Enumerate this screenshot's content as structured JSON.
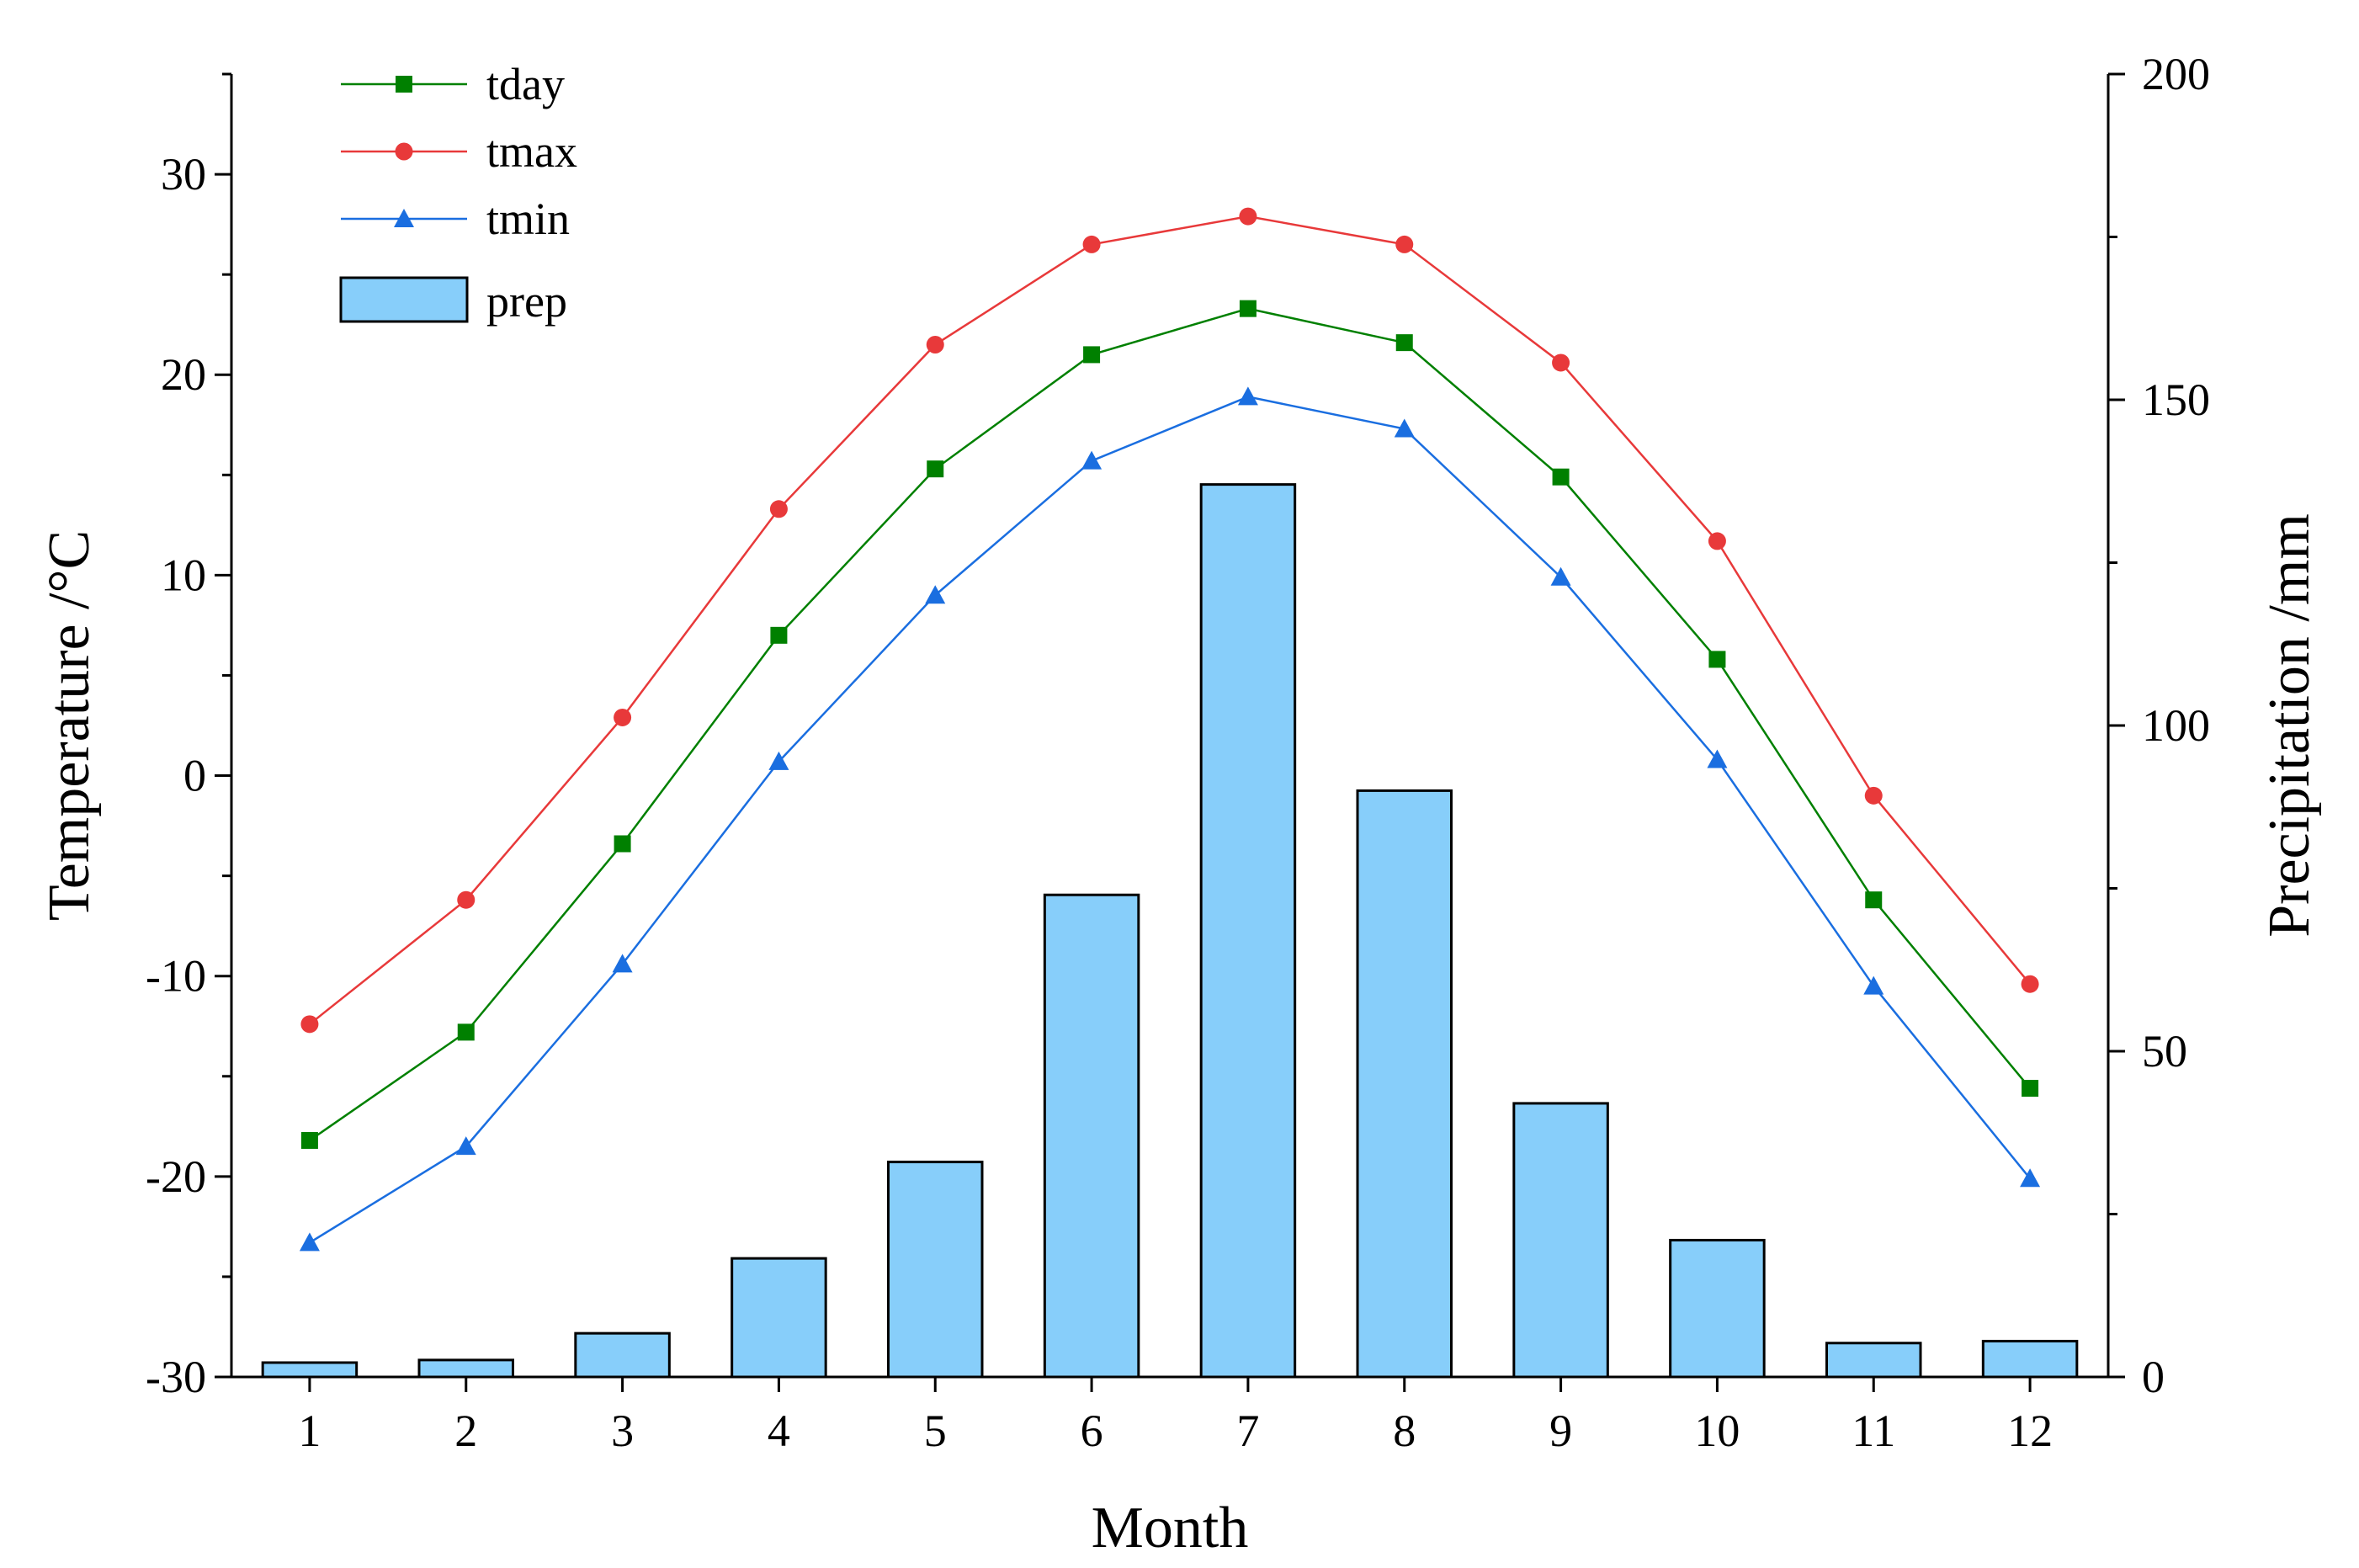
{
  "chart_data": {
    "type": "bar+line",
    "xlabel": "Month",
    "ylabel_left": "Temperature /°C",
    "ylabel_right": "Precipitation /mm",
    "categories": [
      "1",
      "2",
      "3",
      "4",
      "5",
      "6",
      "7",
      "8",
      "9",
      "10",
      "11",
      "12"
    ],
    "y_left": {
      "range": [
        -30,
        35
      ],
      "ticks": [
        -30,
        -20,
        -10,
        0,
        10,
        20,
        30
      ],
      "tick_labels": [
        "-30",
        "-20",
        "-10",
        "0",
        "10",
        "20",
        "30"
      ]
    },
    "y_right": {
      "range": [
        0,
        200
      ],
      "ticks": [
        0,
        50,
        100,
        150,
        200
      ],
      "tick_labels": [
        "0",
        "50",
        "100",
        "150",
        "200"
      ]
    },
    "grid": false,
    "legend_position": "top-left",
    "series": [
      {
        "name": "tday",
        "type": "line",
        "axis": "left",
        "color": "#008000",
        "marker": "square",
        "values": [
          -18.2,
          -12.8,
          -3.4,
          7.0,
          15.3,
          21.0,
          23.3,
          21.6,
          14.9,
          5.8,
          -6.2,
          -15.6
        ]
      },
      {
        "name": "tmax",
        "type": "line",
        "axis": "left",
        "color": "#e8393a",
        "marker": "circle",
        "values": [
          -12.4,
          -6.2,
          2.9,
          13.3,
          21.5,
          26.5,
          27.9,
          26.5,
          20.6,
          11.7,
          -1.0,
          -10.4
        ]
      },
      {
        "name": "tmin",
        "type": "line",
        "axis": "left",
        "color": "#1a6ee0",
        "marker": "triangle",
        "values": [
          -23.3,
          -18.5,
          -9.4,
          0.7,
          9.0,
          15.7,
          18.9,
          17.3,
          9.9,
          0.8,
          -10.5,
          -20.1
        ]
      },
      {
        "name": "prep",
        "type": "bar",
        "axis": "right",
        "color": "#87cefa",
        "values": [
          2.2,
          2.6,
          6.7,
          18.2,
          33.0,
          74.0,
          137.0,
          90.0,
          42.0,
          21.0,
          5.2,
          5.5
        ]
      }
    ]
  }
}
